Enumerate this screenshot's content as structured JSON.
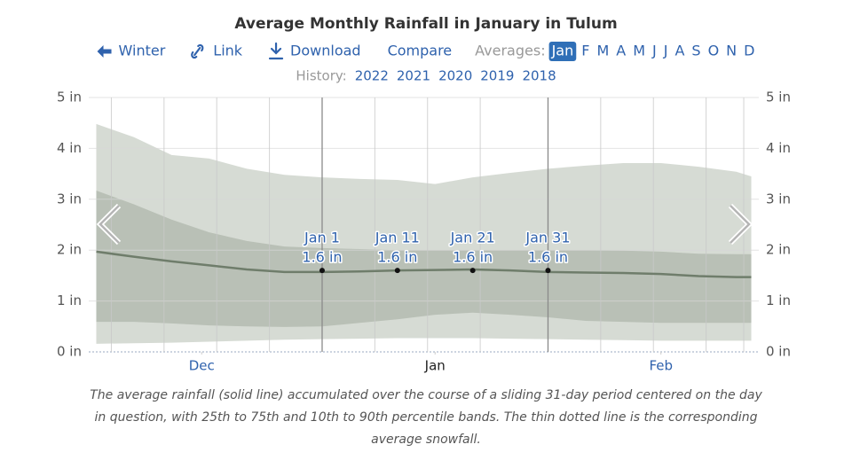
{
  "title": "Average Monthly Rainfall in January in Tulum",
  "nav": {
    "back": "Winter",
    "link": "Link",
    "download": "Download",
    "compare": "Compare",
    "averages_label": "Averages:",
    "months": [
      "Jan",
      "F",
      "M",
      "A",
      "M",
      "J",
      "J",
      "A",
      "S",
      "O",
      "N",
      "D"
    ],
    "selected": 0
  },
  "history": {
    "label": "History:",
    "years": [
      "2022",
      "2021",
      "2020",
      "2019",
      "2018"
    ]
  },
  "chart_data": {
    "type": "area",
    "x": [
      -30,
      -25,
      -20,
      -15,
      -10,
      -5,
      0,
      5,
      10,
      15,
      20,
      25,
      30,
      35,
      40,
      45,
      50,
      55,
      57
    ],
    "xlim": [
      -31,
      58
    ],
    "xticks": [
      {
        "value": -16,
        "label": "Dec"
      },
      {
        "value": 15,
        "label": "Jan"
      },
      {
        "value": 45,
        "label": "Feb"
      }
    ],
    "xgrid": [
      -28,
      -21,
      -14,
      -7,
      7,
      14,
      21,
      37,
      44,
      51,
      56
    ],
    "window": [
      0,
      30
    ],
    "ylim": [
      0,
      5
    ],
    "yticks": [
      {
        "value": 0,
        "label": "0 in"
      },
      {
        "value": 1,
        "label": "1 in"
      },
      {
        "value": 2,
        "label": "2 in"
      },
      {
        "value": 3,
        "label": "3 in"
      },
      {
        "value": 4,
        "label": "4 in"
      },
      {
        "value": 5,
        "label": "5 in"
      }
    ],
    "bands": [
      {
        "color": "#d6dbd4",
        "low": [
          0.16,
          0.17,
          0.18,
          0.2,
          0.22,
          0.24,
          0.25,
          0.26,
          0.27,
          0.27,
          0.27,
          0.26,
          0.25,
          0.24,
          0.23,
          0.22,
          0.22,
          0.22,
          0.22
        ],
        "high": [
          4.48,
          4.22,
          3.87,
          3.8,
          3.6,
          3.48,
          3.43,
          3.4,
          3.38,
          3.3,
          3.43,
          3.52,
          3.6,
          3.66,
          3.71,
          3.71,
          3.64,
          3.54,
          3.45
        ]
      },
      {
        "color": "#b9c0b6",
        "low": [
          0.59,
          0.59,
          0.56,
          0.52,
          0.5,
          0.49,
          0.5,
          0.57,
          0.64,
          0.73,
          0.77,
          0.73,
          0.68,
          0.61,
          0.59,
          0.57,
          0.57,
          0.57,
          0.57
        ],
        "high": [
          3.17,
          2.9,
          2.6,
          2.35,
          2.18,
          2.07,
          2.04,
          2.02,
          2.0,
          2.0,
          2.0,
          2.0,
          2.0,
          2.0,
          1.99,
          1.97,
          1.93,
          1.92,
          1.92
        ]
      }
    ],
    "line": {
      "color": "#6f7d6b",
      "values": [
        1.97,
        1.87,
        1.78,
        1.7,
        1.62,
        1.57,
        1.57,
        1.58,
        1.6,
        1.61,
        1.62,
        1.6,
        1.57,
        1.56,
        1.55,
        1.53,
        1.49,
        1.47,
        1.47
      ]
    },
    "annotations": [
      {
        "x": 0,
        "label": "Jan 1",
        "value": 1.6,
        "value_label": "1.6 in"
      },
      {
        "x": 10,
        "label": "Jan 11",
        "value": 1.6,
        "value_label": "1.6 in"
      },
      {
        "x": 20,
        "label": "Jan 21",
        "value": 1.6,
        "value_label": "1.6 in"
      },
      {
        "x": 30,
        "label": "Jan 31",
        "value": 1.6,
        "value_label": "1.6 in"
      }
    ],
    "caption": [
      "The average rainfall (solid line) accumulated over the course of a sliding 31-day period centered on the day",
      "in question, with 25th to 75th and 10th to 90th percentile bands. The thin dotted line is the corresponding",
      "average snowfall."
    ]
  }
}
